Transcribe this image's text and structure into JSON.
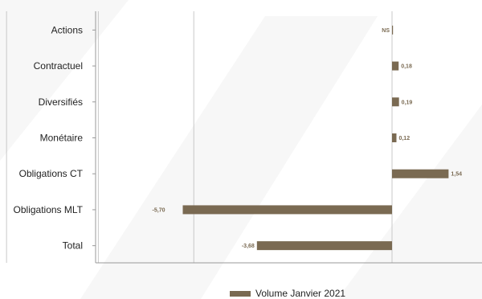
{
  "chart_data": {
    "type": "bar",
    "orientation": "horizontal",
    "categories": [
      "Actions",
      "Contractuel",
      "Diversifiés",
      "Monétaire",
      "Obligations CT",
      "Obligations MLT",
      "Total"
    ],
    "series": [
      {
        "name": "Volume Janvier 2021",
        "values": [
          0,
          0.18,
          0.19,
          0.12,
          1.54,
          -5.7,
          -3.68
        ],
        "labels": [
          "NS",
          "0,18",
          "0,19",
          "0,12",
          "1,54",
          "-5,70",
          "-3,68"
        ]
      }
    ],
    "xlim": [
      -16,
      4.5
    ],
    "grid": true,
    "legend_position": "bottom",
    "colors": {
      "bar": "#7a6a52",
      "grid": "#c8c8c8",
      "axis": "#999999",
      "watermark": "#f6f6f6"
    }
  }
}
